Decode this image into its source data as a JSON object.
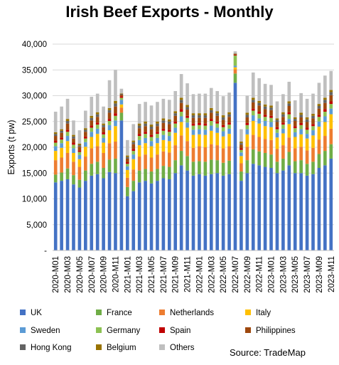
{
  "chart_data": {
    "type": "bar",
    "stacked": true,
    "title": "Irish Beef Exports - Monthly",
    "ylabel": "Exports (t pw)",
    "xlabel": "",
    "ylim": [
      0,
      40000
    ],
    "yticks": [
      0,
      5000,
      10000,
      15000,
      20000,
      25000,
      30000,
      35000,
      40000
    ],
    "ytick_labels": [
      "-",
      "5,000",
      "10,000",
      "15,000",
      "20,000",
      "25,000",
      "30,000",
      "35,000",
      "40,000"
    ],
    "grid": "horizontal",
    "legend_position": "bottom",
    "source": "Source: TradeMap",
    "categories": [
      "2020-M01",
      "2020-M02",
      "2020-M03",
      "2020-M04",
      "2020-M05",
      "2020-M06",
      "2020-M07",
      "2020-M08",
      "2020-M09",
      "2020-M10",
      "2020-M11",
      "2020-M12",
      "2021-M01",
      "2021-M02",
      "2021-M03",
      "2021-M04",
      "2021-M05",
      "2021-M06",
      "2021-M07",
      "2021-M08",
      "2021-M09",
      "2021-M10",
      "2021-M11",
      "2021-M12",
      "2022-M01",
      "2022-M02",
      "2022-M03",
      "2022-M04",
      "2022-M05",
      "2022-M06",
      "2022-M07",
      "2022-M08",
      "2022-M09",
      "2022-M10",
      "2022-M11",
      "2022-M12",
      "2023-M01",
      "2023-M02",
      "2023-M03",
      "2023-M04",
      "2023-M05",
      "2023-M06",
      "2023-M07",
      "2023-M08",
      "2023-M09",
      "2023-M10",
      "2023-M11"
    ],
    "tick_labels": [
      "2020-M01",
      "2020-M03",
      "2020-M05",
      "2020-M07",
      "2020-M09",
      "2020-M11",
      "2021-M01",
      "2021-M03",
      "2021-M05",
      "2021-M07",
      "2021-M09",
      "2021-M11",
      "2022-M01",
      "2022-M03",
      "2022-M05",
      "2022-M07",
      "2022-M09",
      "2022-M11",
      "2023-M01",
      "2023-M03",
      "2023-M05",
      "2023-M07",
      "2023-M09",
      "2023-M11"
    ],
    "series": [
      {
        "name": "UK",
        "color": "#4472C4",
        "values": [
          13200,
          13500,
          13800,
          12800,
          12200,
          13500,
          14500,
          14800,
          14000,
          15200,
          15000,
          25200,
          10500,
          11500,
          13200,
          13500,
          13000,
          13500,
          14000,
          13800,
          15000,
          16500,
          15500,
          14500,
          14800,
          14500,
          14800,
          15000,
          14500,
          14800,
          32500,
          13500,
          15000,
          16800,
          16500,
          16200,
          16000,
          15000,
          15500,
          16500,
          15000,
          15000,
          14500,
          14800,
          16000,
          16500,
          17800
        ]
      },
      {
        "name": "France",
        "color": "#70AD47",
        "values": [
          1500,
          1600,
          2100,
          1800,
          1500,
          2000,
          2300,
          2400,
          2000,
          2400,
          2800,
          1500,
          1800,
          2000,
          2300,
          2300,
          2300,
          2300,
          2400,
          2400,
          2500,
          2800,
          2800,
          2700,
          2500,
          2700,
          2800,
          2500,
          2500,
          2600,
          1800,
          1800,
          2500,
          2800,
          2700,
          2700,
          2600,
          2200,
          2300,
          2600,
          2300,
          2500,
          2300,
          2400,
          2700,
          2800,
          2800
        ]
      },
      {
        "name": "Netherlands",
        "color": "#ED7D31",
        "values": [
          2800,
          2900,
          3000,
          2600,
          2500,
          2700,
          3000,
          3000,
          2900,
          3200,
          3300,
          1000,
          1800,
          2200,
          2700,
          2800,
          2700,
          2800,
          2800,
          2800,
          2900,
          3000,
          2900,
          2700,
          2900,
          2800,
          3000,
          2900,
          2800,
          2800,
          800,
          1600,
          2600,
          2800,
          2800,
          2700,
          2800,
          2500,
          2600,
          2800,
          2500,
          2600,
          2600,
          2700,
          2800,
          2900,
          3000
        ]
      },
      {
        "name": "Italy",
        "color": "#FFC000",
        "values": [
          1800,
          1900,
          2300,
          1700,
          1500,
          1900,
          2200,
          2400,
          2000,
          2500,
          3000,
          600,
          1500,
          2000,
          2200,
          2200,
          2200,
          2200,
          2200,
          2200,
          2400,
          2600,
          2600,
          2500,
          2300,
          2400,
          2600,
          2400,
          2300,
          2400,
          400,
          1400,
          2400,
          2700,
          2600,
          2500,
          2500,
          2200,
          2300,
          2600,
          2200,
          2400,
          2300,
          2400,
          2500,
          2700,
          2800
        ]
      },
      {
        "name": "Sweden",
        "color": "#5B9BD5",
        "values": [
          900,
          900,
          1000,
          900,
          800,
          900,
          1000,
          1000,
          900,
          1000,
          1100,
          900,
          700,
          900,
          1000,
          1000,
          1000,
          1000,
          1000,
          1000,
          1000,
          1100,
          1000,
          1000,
          1000,
          1000,
          1000,
          1000,
          1000,
          1000,
          300,
          700,
          1000,
          1100,
          1000,
          1000,
          1000,
          900,
          900,
          1000,
          900,
          1000,
          900,
          1000,
          1000,
          1100,
          1100
        ]
      },
      {
        "name": "Germany",
        "color": "#8CC152",
        "values": [
          700,
          700,
          800,
          700,
          600,
          700,
          800,
          800,
          700,
          800,
          900,
          400,
          500,
          700,
          800,
          800,
          800,
          800,
          800,
          800,
          800,
          900,
          900,
          800,
          800,
          800,
          900,
          800,
          800,
          800,
          2000,
          500,
          800,
          900,
          900,
          800,
          800,
          700,
          800,
          900,
          800,
          800,
          800,
          800,
          900,
          900,
          900
        ]
      },
      {
        "name": "Spain",
        "color": "#C00000",
        "values": [
          400,
          400,
          400,
          400,
          300,
          400,
          400,
          400,
          400,
          400,
          500,
          300,
          300,
          400,
          400,
          400,
          400,
          400,
          400,
          400,
          400,
          500,
          400,
          400,
          400,
          400,
          400,
          400,
          400,
          400,
          150,
          300,
          400,
          400,
          400,
          400,
          400,
          400,
          400,
          400,
          400,
          400,
          400,
          400,
          400,
          500,
          500
        ]
      },
      {
        "name": "Philippines",
        "color": "#9E480E",
        "values": [
          900,
          900,
          1200,
          800,
          700,
          900,
          1000,
          1100,
          1000,
          1200,
          1300,
          300,
          700,
          900,
          1100,
          1100,
          1100,
          1100,
          1100,
          1100,
          1100,
          1200,
          1200,
          1100,
          1000,
          1100,
          1200,
          1100,
          1000,
          1100,
          150,
          700,
          1100,
          1200,
          1200,
          1100,
          1100,
          1000,
          1100,
          1200,
          1000,
          1100,
          1100,
          1100,
          1200,
          1200,
          1200
        ]
      },
      {
        "name": "Hong Kong",
        "color": "#636363",
        "values": [
          400,
          400,
          500,
          400,
          300,
          400,
          500,
          500,
          400,
          500,
          600,
          150,
          300,
          400,
          500,
          500,
          500,
          500,
          500,
          500,
          500,
          600,
          500,
          500,
          500,
          500,
          500,
          500,
          500,
          500,
          50,
          300,
          500,
          500,
          500,
          500,
          500,
          400,
          500,
          500,
          400,
          500,
          500,
          500,
          500,
          600,
          600
        ]
      },
      {
        "name": "Belgium",
        "color": "#997300",
        "values": [
          300,
          300,
          400,
          300,
          300,
          300,
          400,
          400,
          300,
          400,
          500,
          100,
          300,
          300,
          400,
          400,
          400,
          400,
          400,
          400,
          400,
          400,
          400,
          400,
          400,
          400,
          400,
          400,
          400,
          400,
          50,
          300,
          400,
          400,
          400,
          400,
          400,
          300,
          400,
          400,
          300,
          400,
          400,
          400,
          400,
          400,
          400
        ]
      },
      {
        "name": "Others",
        "color": "#BFBFBF",
        "values": [
          4000,
          4400,
          3900,
          2800,
          2600,
          3400,
          3700,
          3600,
          3300,
          5400,
          6000,
          900,
          3000,
          3200,
          3800,
          3800,
          3700,
          3800,
          3800,
          3800,
          3900,
          4600,
          4200,
          3700,
          3800,
          3800,
          3900,
          3900,
          3700,
          3800,
          400,
          2400,
          3300,
          4900,
          4400,
          4000,
          4000,
          3300,
          3500,
          3800,
          3300,
          3800,
          3600,
          3900,
          4100,
          4300,
          3700
        ]
      }
    ]
  }
}
